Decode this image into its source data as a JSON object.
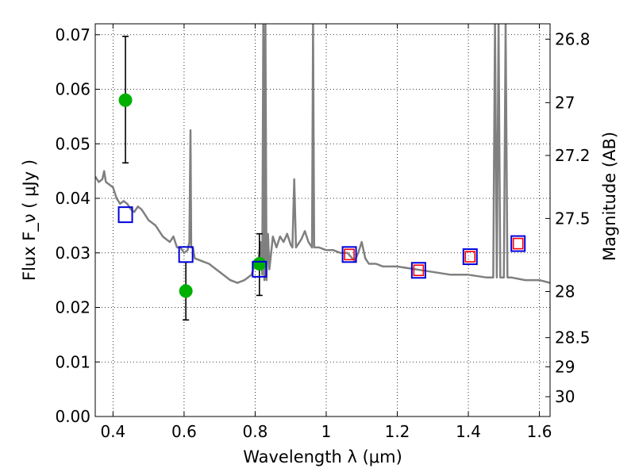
{
  "chart_data": {
    "type": "scatter",
    "xlabel": "Wavelength  λ (μm)",
    "ylabel": "Flux  F_ν  ( μJy )",
    "ylabel_right": "Magnitude (AB)",
    "xlim": [
      0.35,
      1.63
    ],
    "ylim": [
      0.0,
      0.072
    ],
    "grid": true,
    "x_ticks": [
      0.4,
      0.6,
      0.8,
      1.0,
      1.2,
      1.4,
      1.6
    ],
    "x_tick_labels": [
      "0.4",
      "0.6",
      "0.8",
      "1",
      "1.2",
      "1.4",
      "1.6"
    ],
    "y_ticks": [
      0.0,
      0.01,
      0.02,
      0.03,
      0.04,
      0.05,
      0.06,
      0.07
    ],
    "y_tick_labels": [
      "0.00",
      "0.01",
      "0.02",
      "0.03",
      "0.04",
      "0.05",
      "0.06",
      "0.07"
    ],
    "right_ticks": [
      26.8,
      27,
      27.2,
      27.5,
      28,
      28.5,
      29,
      30
    ],
    "right_tick_labels": [
      "26.8",
      "27",
      "27.2",
      "27.5",
      "28",
      "28.5",
      "29",
      "30"
    ],
    "series": [
      {
        "kind": "line",
        "color": "#808080",
        "x": [
          0.35,
          0.36,
          0.37,
          0.375,
          0.38,
          0.39,
          0.4,
          0.41,
          0.42,
          0.43,
          0.44,
          0.45,
          0.46,
          0.47,
          0.48,
          0.49,
          0.5,
          0.51,
          0.52,
          0.53,
          0.54,
          0.55,
          0.56,
          0.57,
          0.58,
          0.59,
          0.6,
          0.61,
          0.615,
          0.618,
          0.62,
          0.625,
          0.63,
          0.65,
          0.67,
          0.69,
          0.71,
          0.73,
          0.75,
          0.77,
          0.79,
          0.8,
          0.81,
          0.815,
          0.82,
          0.823,
          0.826,
          0.829,
          0.832,
          0.836,
          0.84,
          0.85,
          0.86,
          0.87,
          0.88,
          0.89,
          0.9,
          0.905,
          0.91,
          0.915,
          0.92,
          0.93,
          0.94,
          0.95,
          0.96,
          0.963,
          0.966,
          0.97,
          0.98,
          1.0,
          1.02,
          1.04,
          1.06,
          1.08,
          1.09,
          1.1,
          1.11,
          1.12,
          1.14,
          1.16,
          1.2,
          1.25,
          1.3,
          1.35,
          1.4,
          1.45,
          1.47,
          1.475,
          1.48,
          1.485,
          1.49,
          1.5,
          1.505,
          1.51,
          1.52,
          1.56,
          1.6,
          1.63
        ],
        "y": [
          0.044,
          0.043,
          0.0435,
          0.045,
          0.043,
          0.0425,
          0.042,
          0.04,
          0.039,
          0.0395,
          0.039,
          0.038,
          0.0375,
          0.0385,
          0.038,
          0.037,
          0.036,
          0.0355,
          0.035,
          0.034,
          0.033,
          0.0325,
          0.032,
          0.033,
          0.031,
          0.031,
          0.03,
          0.0305,
          0.032,
          0.0525,
          0.031,
          0.031,
          0.029,
          0.0285,
          0.028,
          0.027,
          0.026,
          0.025,
          0.0245,
          0.025,
          0.026,
          0.028,
          0.029,
          0.032,
          0.026,
          0.072,
          0.025,
          0.072,
          0.025,
          0.0335,
          0.027,
          0.033,
          0.031,
          0.033,
          0.032,
          0.0335,
          0.0315,
          0.031,
          0.0435,
          0.031,
          0.0315,
          0.0325,
          0.034,
          0.032,
          0.031,
          0.072,
          0.031,
          0.031,
          0.031,
          0.0305,
          0.0305,
          0.03,
          0.03,
          0.0285,
          0.03,
          0.032,
          0.029,
          0.028,
          0.028,
          0.0275,
          0.0275,
          0.027,
          0.0265,
          0.026,
          0.026,
          0.0255,
          0.0255,
          0.072,
          0.0255,
          0.072,
          0.0255,
          0.0255,
          0.072,
          0.0255,
          0.0255,
          0.025,
          0.025,
          0.0245
        ]
      },
      {
        "kind": "points",
        "marker": "circle",
        "color": "#00b000",
        "x": [
          0.435,
          0.605,
          0.812
        ],
        "y": [
          0.058,
          0.023,
          0.028
        ],
        "err_low": [
          0.0465,
          0.0177,
          0.0222
        ],
        "err_high": [
          0.0697,
          0.0283,
          0.0335
        ]
      },
      {
        "kind": "points",
        "marker": "open-square",
        "color": "#0000dd",
        "x": [
          0.435,
          0.605,
          0.812,
          1.065,
          1.26,
          1.405,
          1.54
        ],
        "y": [
          0.037,
          0.0297,
          0.027,
          0.0297,
          0.0268,
          0.0293,
          0.0317
        ]
      },
      {
        "kind": "points",
        "marker": "open-square-small",
        "color": "#ff0000",
        "x": [
          1.065,
          1.26,
          1.405,
          1.54
        ],
        "y": [
          0.0297,
          0.0268,
          0.0293,
          0.0317
        ]
      }
    ]
  }
}
